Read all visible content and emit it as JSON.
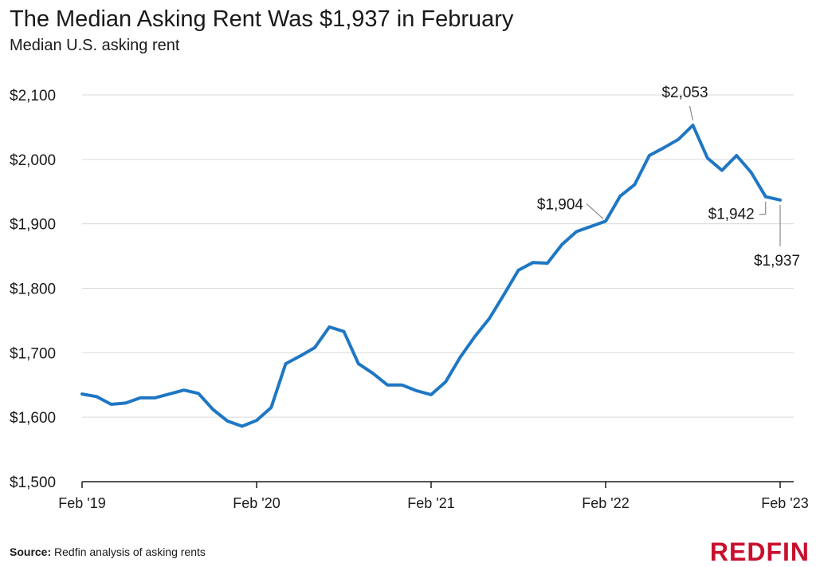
{
  "header": {
    "title": "The Median Asking Rent Was $1,937 in February",
    "subtitle": "Median U.S. asking rent"
  },
  "footer": {
    "source_label": "Source:",
    "source_text": "Redfin analysis of asking rents",
    "logo": "REDFIN"
  },
  "colors": {
    "line": "#1f77c4",
    "grid": "#d9d9d9",
    "axis": "#1a1a1a",
    "logo": "#c8102e"
  },
  "chart_data": {
    "type": "line",
    "title": "The Median Asking Rent Was $1,937 in February",
    "subtitle": "Median U.S. asking rent",
    "ylim": [
      1500,
      2100
    ],
    "yticks": [
      1500,
      1600,
      1700,
      1800,
      1900,
      2000,
      2100
    ],
    "ytick_labels": [
      "$1,500",
      "$1,600",
      "$1,700",
      "$1,800",
      "$1,900",
      "$2,000",
      "$2,100"
    ],
    "xtick_labels": [
      "Feb '19",
      "Feb '20",
      "Feb '21",
      "Feb '22",
      "Feb '23"
    ],
    "xtick_index": [
      0,
      12,
      24,
      36,
      48
    ],
    "grid": true,
    "series": [
      {
        "values": [
          1636,
          1632,
          1620,
          1622,
          1630,
          1630,
          1636,
          1642,
          1637,
          1612,
          1594,
          1586,
          1595,
          1615,
          1683,
          1695,
          1708,
          1740,
          1733,
          1683,
          1668,
          1650,
          1650,
          1641,
          1635,
          1655,
          1693,
          1725,
          1753,
          1790,
          1828,
          1840,
          1839,
          1868,
          1888,
          1896,
          1904,
          1943,
          1961,
          2006,
          2018,
          2031,
          2053,
          2002,
          1983,
          2006,
          1980,
          1942,
          1937
        ]
      }
    ],
    "annotations": [
      {
        "label": "$2,053",
        "index": 42,
        "value": 2053
      },
      {
        "label": "$1,904",
        "index": 36,
        "value": 1904
      },
      {
        "label": "$1,942",
        "index": 47,
        "value": 1942
      },
      {
        "label": "$1,937",
        "index": 48,
        "value": 1937
      }
    ]
  }
}
